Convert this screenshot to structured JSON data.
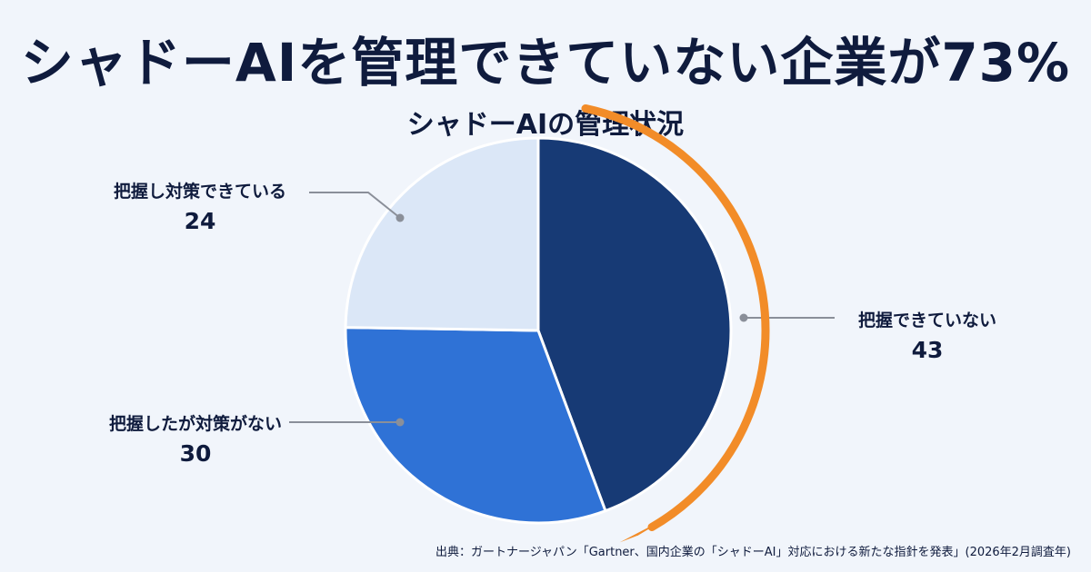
{
  "headline": "シャドーAIを管理できていない企業が73%",
  "chart_data": {
    "type": "pie",
    "title": "シャドーAIの管理状況",
    "slices": [
      {
        "label": "把握できていない",
        "value": 43,
        "color": "#173a75"
      },
      {
        "label": "把握したが対策がない",
        "value": 30,
        "color": "#2f72d6"
      },
      {
        "label": "把握し対策できている",
        "value": 24,
        "color": "#dbe7f7"
      }
    ],
    "start_angle_deg": 0,
    "direction": "clockwise",
    "arrow_color": "#f28c28",
    "leader_color": "#8a8f99"
  },
  "source": "出典：ガートナージャパン「Gartner、国内企業の「シャドーAI」対応における新たな指針を発表」(2026年2月調査年)"
}
